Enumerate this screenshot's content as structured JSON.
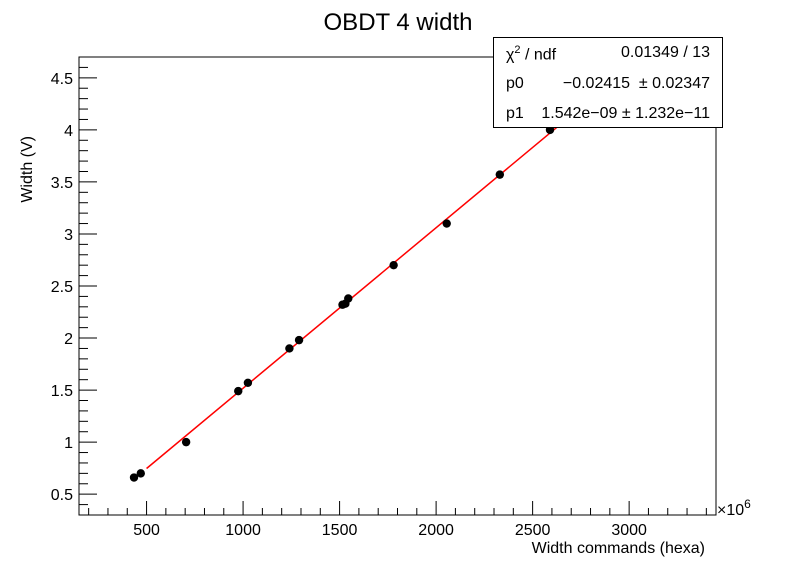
{
  "chart_data": {
    "type": "scatter",
    "title": "OBDT 4 width",
    "xlabel": "Width commands (hexa)",
    "ylabel": "Width (V)",
    "x_multiplier": "×10",
    "x_multiplier_exp": "6",
    "xlim": [
      150,
      3450
    ],
    "ylim": [
      0.3,
      4.7
    ],
    "xticks": [
      500,
      1000,
      1500,
      2000,
      2500,
      3000
    ],
    "yticks": [
      0.5,
      1,
      1.5,
      2,
      2.5,
      3,
      3.5,
      4,
      4.5
    ],
    "xtick_labels": [
      "500",
      "1000",
      "1500",
      "2000",
      "2500",
      "3000"
    ],
    "ytick_labels": [
      "0.5",
      "1",
      "1.5",
      "2",
      "2.5",
      "3",
      "3.5",
      "4",
      "4.5"
    ],
    "points": [
      {
        "x": 435,
        "y": 0.66
      },
      {
        "x": 470,
        "y": 0.7
      },
      {
        "x": 705,
        "y": 1.0
      },
      {
        "x": 975,
        "y": 1.49
      },
      {
        "x": 1025,
        "y": 1.57
      },
      {
        "x": 1240,
        "y": 1.9
      },
      {
        "x": 1290,
        "y": 1.98
      },
      {
        "x": 1515,
        "y": 2.32
      },
      {
        "x": 1530,
        "y": 2.33
      },
      {
        "x": 1545,
        "y": 2.38
      },
      {
        "x": 1780,
        "y": 2.7
      },
      {
        "x": 2055,
        "y": 3.1
      },
      {
        "x": 2330,
        "y": 3.57
      },
      {
        "x": 2590,
        "y": 4.0
      }
    ],
    "fit": {
      "x_start": 500,
      "x_end": 2700,
      "p0": -0.02415,
      "p1": 1.542e-09,
      "x_scale": 1000000
    },
    "fit_color": "#ff0000",
    "marker_color": "#000000"
  },
  "stats": {
    "rows": [
      {
        "name": "χ",
        "name_sup": "2",
        "name_rest": " / ndf",
        "value": "0.01349 / 13"
      },
      {
        "name": "p0",
        "value": "−0.02415  ± 0.02347"
      },
      {
        "name": "p1",
        "value": "1.542e−09 ± 1.232e−11"
      }
    ]
  }
}
